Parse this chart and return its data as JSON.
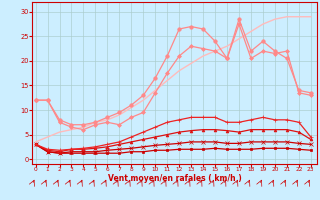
{
  "xlabel": "Vent moyen/en rafales ( km/h )",
  "bg_color": "#cceeff",
  "grid_color": "#aacccc",
  "x_ticks": [
    0,
    1,
    2,
    3,
    4,
    5,
    6,
    7,
    8,
    9,
    10,
    11,
    12,
    13,
    14,
    15,
    16,
    17,
    18,
    19,
    20,
    21,
    22,
    23
  ],
  "y_ticks": [
    0,
    5,
    10,
    15,
    20,
    25,
    30
  ],
  "ylim": [
    -1,
    32
  ],
  "xlim": [
    -0.3,
    23.5
  ],
  "series": [
    {
      "x": [
        0,
        1,
        2,
        3,
        4,
        5,
        6,
        7,
        8,
        9,
        10,
        11,
        12,
        13,
        14,
        15,
        16,
        17,
        18,
        19,
        20,
        21,
        22,
        23
      ],
      "y": [
        3.0,
        1.5,
        1.2,
        1.2,
        1.2,
        1.2,
        1.2,
        1.2,
        1.5,
        1.5,
        1.8,
        1.8,
        2.0,
        2.0,
        2.0,
        2.2,
        2.0,
        2.0,
        2.0,
        2.2,
        2.2,
        2.2,
        2.0,
        1.8
      ],
      "color": "#cc0000",
      "lw": 0.9,
      "marker": "s",
      "ms": 1.8
    },
    {
      "x": [
        0,
        1,
        2,
        3,
        4,
        5,
        6,
        7,
        8,
        9,
        10,
        11,
        12,
        13,
        14,
        15,
        16,
        17,
        18,
        19,
        20,
        21,
        22,
        23
      ],
      "y": [
        3.0,
        1.5,
        1.2,
        1.5,
        1.5,
        1.5,
        1.8,
        2.0,
        2.2,
        2.5,
        2.8,
        3.0,
        3.2,
        3.5,
        3.5,
        3.5,
        3.2,
        3.2,
        3.5,
        3.5,
        3.5,
        3.5,
        3.2,
        3.0
      ],
      "color": "#cc0000",
      "lw": 0.9,
      "marker": "x",
      "ms": 2.5
    },
    {
      "x": [
        0,
        1,
        2,
        3,
        4,
        5,
        6,
        7,
        8,
        9,
        10,
        11,
        12,
        13,
        14,
        15,
        16,
        17,
        18,
        19,
        20,
        21,
        22,
        23
      ],
      "y": [
        3.0,
        1.8,
        1.5,
        2.0,
        2.0,
        2.2,
        2.5,
        3.0,
        3.5,
        4.0,
        4.5,
        5.0,
        5.5,
        5.8,
        6.0,
        6.0,
        5.8,
        5.5,
        6.0,
        6.0,
        6.0,
        6.0,
        5.5,
        4.0
      ],
      "color": "#dd1111",
      "lw": 0.9,
      "marker": "^",
      "ms": 2.0
    },
    {
      "x": [
        0,
        1,
        2,
        3,
        4,
        5,
        6,
        7,
        8,
        9,
        10,
        11,
        12,
        13,
        14,
        15,
        16,
        17,
        18,
        19,
        20,
        21,
        22,
        23
      ],
      "y": [
        3.0,
        2.0,
        1.8,
        2.0,
        2.2,
        2.5,
        3.0,
        3.5,
        4.5,
        5.5,
        6.5,
        7.5,
        8.0,
        8.5,
        8.5,
        8.5,
        7.5,
        7.5,
        8.0,
        8.5,
        8.0,
        8.0,
        7.5,
        4.5
      ],
      "color": "#ee2222",
      "lw": 0.9,
      "marker": "+",
      "ms": 3.0
    },
    {
      "x": [
        0,
        1,
        2,
        3,
        4,
        5,
        6,
        7,
        8,
        9,
        10,
        11,
        12,
        13,
        14,
        15,
        16,
        17,
        18,
        19,
        20,
        21,
        22,
        23
      ],
      "y": [
        3.5,
        4.5,
        5.5,
        6.0,
        6.5,
        7.5,
        8.0,
        9.0,
        10.5,
        12.0,
        14.0,
        16.0,
        18.0,
        19.5,
        21.0,
        22.0,
        23.0,
        24.5,
        26.0,
        27.5,
        28.5,
        29.0,
        29.0,
        29.0
      ],
      "color": "#ffbbbb",
      "lw": 1.0,
      "marker": "None",
      "ms": 0
    },
    {
      "x": [
        0,
        1,
        2,
        3,
        4,
        5,
        6,
        7,
        8,
        9,
        10,
        11,
        12,
        13,
        14,
        15,
        16,
        17,
        18,
        19,
        20,
        21,
        22,
        23
      ],
      "y": [
        12.0,
        12.0,
        7.5,
        6.5,
        6.0,
        7.0,
        7.5,
        7.0,
        8.5,
        9.5,
        13.5,
        17.5,
        21.0,
        23.0,
        22.5,
        22.0,
        20.5,
        27.5,
        20.5,
        22.0,
        21.5,
        22.0,
        13.5,
        13.0
      ],
      "color": "#ff8888",
      "lw": 0.9,
      "marker": "D",
      "ms": 2.0
    },
    {
      "x": [
        0,
        1,
        2,
        3,
        4,
        5,
        6,
        7,
        8,
        9,
        10,
        11,
        12,
        13,
        14,
        15,
        16,
        17,
        18,
        19,
        20,
        21,
        22,
        23
      ],
      "y": [
        12.0,
        12.0,
        8.0,
        7.0,
        7.0,
        7.5,
        8.5,
        9.5,
        11.0,
        13.0,
        16.5,
        21.0,
        26.5,
        27.0,
        26.5,
        24.0,
        20.5,
        28.5,
        22.0,
        24.0,
        22.0,
        20.5,
        14.0,
        13.5
      ],
      "color": "#ff8888",
      "lw": 0.9,
      "marker": "o",
      "ms": 2.5
    }
  ]
}
